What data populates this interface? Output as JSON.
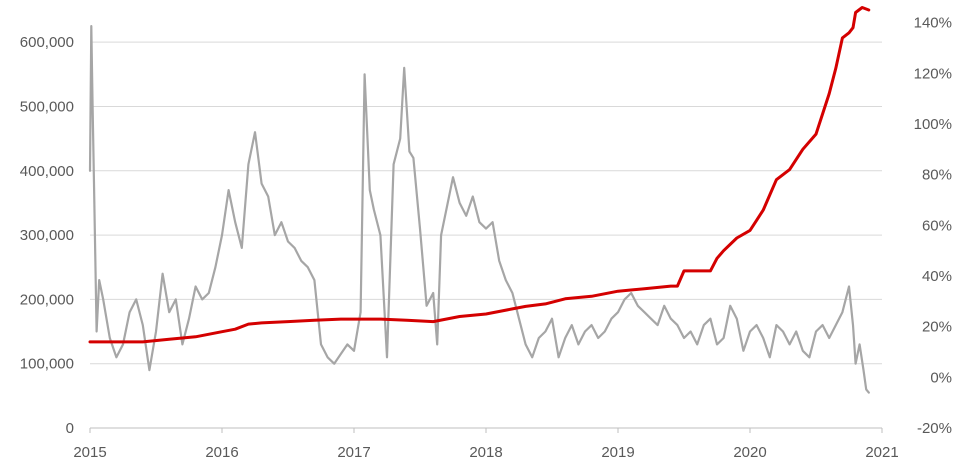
{
  "chart_data": {
    "type": "line",
    "title": "",
    "xlabel": "",
    "ylabel": "",
    "x_ticks": [
      "2015",
      "2016",
      "2017",
      "2018",
      "2019",
      "2020",
      "2021"
    ],
    "y_left_ticks": [
      "0",
      "100,000",
      "200,000",
      "300,000",
      "400,000",
      "500,000",
      "600,000"
    ],
    "y_right_ticks": [
      "-20%",
      "0%",
      "20%",
      "40%",
      "60%",
      "80%",
      "100%",
      "120%",
      "140%"
    ],
    "y_left_range": [
      0,
      650000
    ],
    "y_right_range": [
      -20,
      145
    ],
    "x_range": [
      2015.0,
      2021.0
    ],
    "grid": true,
    "colors": {
      "grey_series": "#a6a6a6",
      "red_series": "#d40000"
    },
    "series": [
      {
        "axis": "left",
        "color": "#a6a6a6",
        "x": [
          2015.0,
          2015.01,
          2015.02,
          2015.03,
          2015.05,
          2015.07,
          2015.1,
          2015.15,
          2015.2,
          2015.25,
          2015.3,
          2015.35,
          2015.4,
          2015.45,
          2015.5,
          2015.55,
          2015.6,
          2015.65,
          2015.7,
          2015.75,
          2015.8,
          2015.85,
          2015.9,
          2015.95,
          2016.0,
          2016.05,
          2016.1,
          2016.15,
          2016.2,
          2016.25,
          2016.3,
          2016.35,
          2016.4,
          2016.45,
          2016.5,
          2016.55,
          2016.6,
          2016.65,
          2016.7,
          2016.75,
          2016.8,
          2016.85,
          2016.9,
          2016.95,
          2017.0,
          2017.05,
          2017.08,
          2017.12,
          2017.15,
          2017.2,
          2017.25,
          2017.3,
          2017.35,
          2017.38,
          2017.42,
          2017.45,
          2017.5,
          2017.55,
          2017.6,
          2017.63,
          2017.66,
          2017.7,
          2017.75,
          2017.8,
          2017.85,
          2017.9,
          2017.95,
          2018.0,
          2018.05,
          2018.1,
          2018.15,
          2018.2,
          2018.25,
          2018.3,
          2018.35,
          2018.4,
          2018.45,
          2018.5,
          2018.55,
          2018.6,
          2018.65,
          2018.7,
          2018.75,
          2018.8,
          2018.85,
          2018.9,
          2018.95,
          2019.0,
          2019.05,
          2019.1,
          2019.15,
          2019.2,
          2019.25,
          2019.3,
          2019.35,
          2019.4,
          2019.45,
          2019.5,
          2019.55,
          2019.6,
          2019.65,
          2019.7,
          2019.75,
          2019.8,
          2019.85,
          2019.9,
          2019.95,
          2020.0,
          2020.05,
          2020.1,
          2020.15,
          2020.2,
          2020.25,
          2020.3,
          2020.35,
          2020.4,
          2020.45,
          2020.5,
          2020.55,
          2020.6,
          2020.65,
          2020.7,
          2020.75,
          2020.78,
          2020.8,
          2020.83,
          2020.86,
          2020.88,
          2020.9
        ],
        "y": [
          400000,
          625000,
          500000,
          380000,
          150000,
          230000,
          200000,
          140000,
          110000,
          130000,
          180000,
          200000,
          160000,
          90000,
          150000,
          240000,
          180000,
          200000,
          130000,
          170000,
          220000,
          200000,
          210000,
          250000,
          300000,
          370000,
          320000,
          280000,
          410000,
          460000,
          380000,
          360000,
          300000,
          320000,
          290000,
          280000,
          260000,
          250000,
          230000,
          130000,
          110000,
          100000,
          115000,
          130000,
          120000,
          180000,
          550000,
          370000,
          340000,
          300000,
          110000,
          410000,
          450000,
          560000,
          430000,
          420000,
          310000,
          190000,
          210000,
          130000,
          300000,
          340000,
          390000,
          350000,
          330000,
          360000,
          320000,
          310000,
          320000,
          260000,
          230000,
          210000,
          170000,
          130000,
          110000,
          140000,
          150000,
          170000,
          110000,
          140000,
          160000,
          130000,
          150000,
          160000,
          140000,
          150000,
          170000,
          180000,
          200000,
          210000,
          190000,
          180000,
          170000,
          160000,
          190000,
          170000,
          160000,
          140000,
          150000,
          130000,
          160000,
          170000,
          130000,
          140000,
          190000,
          170000,
          120000,
          150000,
          160000,
          140000,
          110000,
          160000,
          150000,
          130000,
          150000,
          120000,
          110000,
          150000,
          160000,
          140000,
          160000,
          180000,
          220000,
          160000,
          100000,
          130000,
          90000,
          60000,
          55000
        ]
      },
      {
        "axis": "right",
        "color": "#d40000",
        "x": [
          2015.0,
          2015.2,
          2015.4,
          2015.6,
          2015.8,
          2016.0,
          2016.1,
          2016.2,
          2016.3,
          2016.5,
          2016.7,
          2016.9,
          2017.0,
          2017.2,
          2017.4,
          2017.6,
          2017.8,
          2018.0,
          2018.2,
          2018.3,
          2018.45,
          2018.6,
          2018.8,
          2019.0,
          2019.2,
          2019.4,
          2019.45,
          2019.5,
          2019.6,
          2019.7,
          2019.75,
          2019.8,
          2019.9,
          2020.0,
          2020.05,
          2020.1,
          2020.15,
          2020.2,
          2020.3,
          2020.4,
          2020.5,
          2020.55,
          2020.6,
          2020.65,
          2020.7,
          2020.75,
          2020.78,
          2020.8,
          2020.85,
          2020.9
        ],
        "y": [
          14,
          14,
          14,
          15,
          16,
          18,
          19,
          21,
          21.5,
          22,
          22.5,
          23,
          23,
          23,
          22.5,
          22,
          24,
          25,
          27,
          28,
          29,
          31,
          32,
          34,
          35,
          36,
          36,
          42,
          42,
          42,
          47,
          50,
          55,
          58,
          62,
          66,
          72,
          78,
          82,
          90,
          96,
          104,
          112,
          122,
          134,
          136,
          138,
          144,
          146,
          145
        ]
      }
    ]
  }
}
